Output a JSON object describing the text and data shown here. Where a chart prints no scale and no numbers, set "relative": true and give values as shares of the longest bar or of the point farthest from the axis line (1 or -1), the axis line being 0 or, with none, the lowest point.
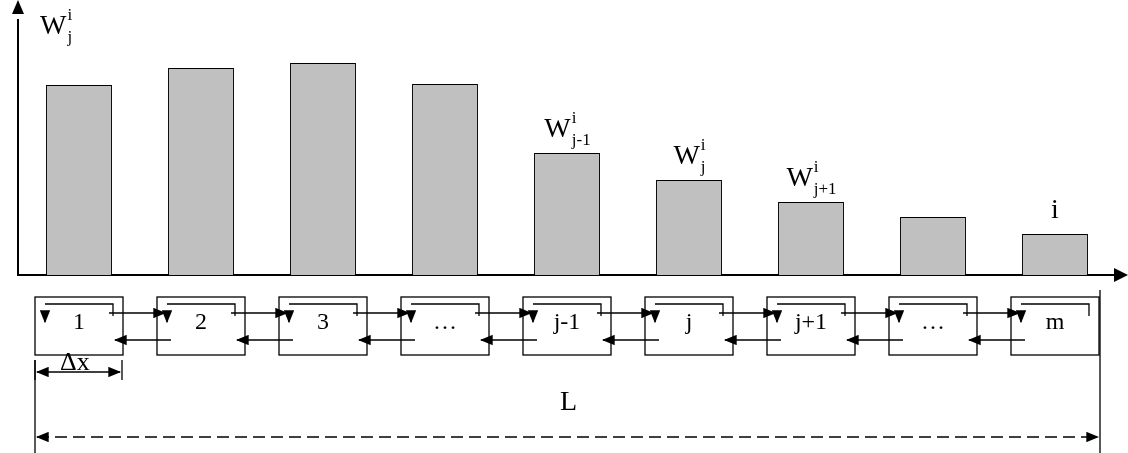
{
  "chart_data": {
    "type": "bar",
    "relative": true,
    "ylabel": "W$^{i}$$_{j}$",
    "categories": [
      "1",
      "2",
      "3",
      "…",
      "j-1",
      "j",
      "j+1",
      "…",
      "m"
    ],
    "values": [
      0.896,
      0.976,
      1,
      0.901,
      0.575,
      0.448,
      0.344,
      0.274,
      0.193
    ],
    "color": "#c0c0c0",
    "annotations": [
      {
        "text": "W$^{i}$$_{j-1}$",
        "x": "j-1",
        "y": 0.575
      },
      {
        "text": "W$^{i}$$_{j}$",
        "x": "j",
        "y": 0.448
      },
      {
        "text": "W$^{i}$$_{j+1}$",
        "x": "j+1",
        "y": 0.344
      },
      {
        "text": "i",
        "x": "m",
        "y": 0.193
      },
      "Δx",
      "L"
    ]
  }
}
